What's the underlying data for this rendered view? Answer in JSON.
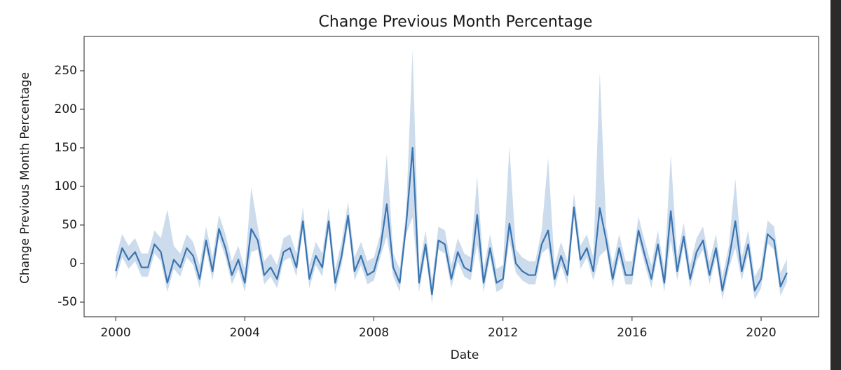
{
  "chart_data": {
    "type": "line",
    "title": "Change Previous Month Percentage",
    "xlabel": "Date",
    "ylabel": "Change Previous Month Percentage",
    "x": [
      2000.0,
      2000.2,
      2000.4,
      2000.6,
      2000.8,
      2001.0,
      2001.2,
      2001.4,
      2001.6,
      2001.8,
      2002.0,
      2002.2,
      2002.4,
      2002.6,
      2002.8,
      2003.0,
      2003.2,
      2003.4,
      2003.6,
      2003.8,
      2004.0,
      2004.2,
      2004.4,
      2004.6,
      2004.8,
      2005.0,
      2005.2,
      2005.4,
      2005.6,
      2005.8,
      2006.0,
      2006.2,
      2006.4,
      2006.6,
      2006.8,
      2007.0,
      2007.2,
      2007.4,
      2007.6,
      2007.8,
      2008.0,
      2008.2,
      2008.4,
      2008.6,
      2008.8,
      2009.0,
      2009.2,
      2009.4,
      2009.6,
      2009.8,
      2010.0,
      2010.2,
      2010.4,
      2010.6,
      2010.8,
      2011.0,
      2011.2,
      2011.4,
      2011.6,
      2011.8,
      2012.0,
      2012.2,
      2012.4,
      2012.6,
      2012.8,
      2013.0,
      2013.2,
      2013.4,
      2013.6,
      2013.8,
      2014.0,
      2014.2,
      2014.4,
      2014.6,
      2014.8,
      2015.0,
      2015.2,
      2015.4,
      2015.6,
      2015.8,
      2016.0,
      2016.2,
      2016.4,
      2016.6,
      2016.8,
      2017.0,
      2017.2,
      2017.4,
      2017.6,
      2017.8,
      2018.0,
      2018.2,
      2018.4,
      2018.6,
      2018.8,
      2019.0,
      2019.2,
      2019.4,
      2019.6,
      2019.8,
      2020.0,
      2020.2,
      2020.4,
      2020.6,
      2020.8
    ],
    "series": [
      {
        "color": "#3a74b0",
        "band_color": "#aac4e0",
        "values": [
          -10,
          20,
          5,
          15,
          -5,
          -5,
          25,
          15,
          -25,
          5,
          -5,
          20,
          10,
          -20,
          30,
          -10,
          45,
          20,
          -15,
          5,
          -25,
          45,
          30,
          -15,
          -5,
          -20,
          15,
          20,
          -5,
          55,
          -20,
          10,
          -5,
          55,
          -25,
          10,
          62,
          -10,
          10,
          -15,
          -10,
          20,
          77,
          -5,
          -25,
          50,
          150,
          -25,
          25,
          -40,
          30,
          25,
          -20,
          15,
          -5,
          -10,
          63,
          -25,
          20,
          -25,
          -20,
          52,
          0,
          -10,
          -15,
          -15,
          25,
          43,
          -20,
          10,
          -15,
          73,
          5,
          20,
          -10,
          72,
          30,
          -20,
          20,
          -15,
          -15,
          43,
          10,
          -20,
          25,
          -25,
          68,
          -10,
          35,
          -20,
          15,
          30,
          -15,
          20,
          -35,
          5,
          55,
          -10,
          25,
          -35,
          -20,
          38,
          30,
          -30,
          -12
        ],
        "lower": [
          -22,
          8,
          -7,
          3,
          -17,
          -17,
          13,
          3,
          -37,
          -7,
          -17,
          8,
          -2,
          -32,
          18,
          -22,
          33,
          8,
          -27,
          -7,
          -37,
          15,
          18,
          -27,
          -17,
          -32,
          3,
          8,
          -17,
          43,
          -32,
          -2,
          -17,
          43,
          -37,
          -2,
          50,
          -22,
          -2,
          -27,
          -22,
          8,
          35,
          -17,
          -37,
          38,
          60,
          -37,
          13,
          -52,
          18,
          13,
          -32,
          3,
          -17,
          -22,
          25,
          -37,
          8,
          -37,
          -32,
          30,
          -12,
          -22,
          -27,
          -27,
          13,
          20,
          -32,
          -2,
          -27,
          61,
          -7,
          8,
          -22,
          10,
          18,
          -32,
          8,
          -27,
          -27,
          31,
          -2,
          -32,
          13,
          -37,
          30,
          -22,
          23,
          -32,
          3,
          18,
          -27,
          8,
          -47,
          -7,
          20,
          -22,
          13,
          -47,
          -32,
          26,
          18,
          -42,
          -24
        ],
        "upper": [
          8,
          38,
          23,
          33,
          13,
          13,
          43,
          33,
          70,
          23,
          13,
          38,
          28,
          -2,
          48,
          8,
          63,
          38,
          3,
          23,
          -7,
          99,
          48,
          3,
          13,
          -2,
          33,
          38,
          13,
          73,
          -2,
          28,
          13,
          73,
          -7,
          28,
          80,
          8,
          28,
          3,
          8,
          38,
          142,
          13,
          -7,
          68,
          277,
          -7,
          43,
          -22,
          48,
          43,
          -2,
          33,
          13,
          8,
          113,
          -7,
          38,
          -7,
          -2,
          152,
          18,
          8,
          3,
          3,
          43,
          137,
          -2,
          28,
          3,
          91,
          23,
          38,
          8,
          248,
          48,
          -2,
          38,
          3,
          3,
          61,
          28,
          -2,
          43,
          -7,
          141,
          8,
          53,
          -2,
          33,
          48,
          3,
          38,
          -17,
          23,
          110,
          8,
          43,
          -17,
          -2,
          56,
          48,
          -12,
          6
        ]
      }
    ],
    "xlim": [
      1999.02,
      2021.78
    ],
    "ylim": [
      -69,
      294.5
    ],
    "xticks": [
      2000,
      2004,
      2008,
      2012,
      2016,
      2020
    ],
    "yticks": [
      -50,
      0,
      50,
      100,
      150,
      200,
      250
    ]
  }
}
